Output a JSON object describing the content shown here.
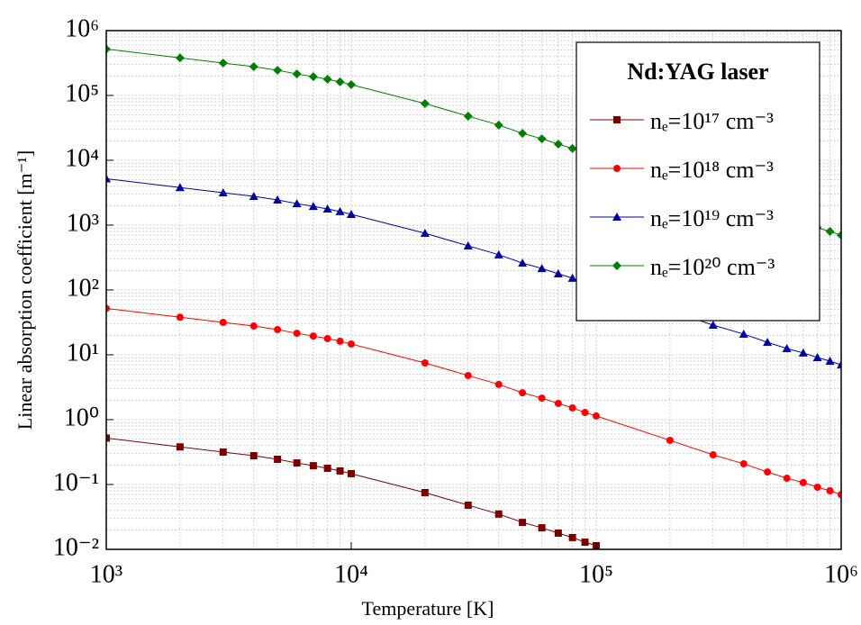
{
  "chart_data": {
    "type": "line",
    "xlabel": "Temperature [K]",
    "ylabel": "Linear absorption coefficient [m⁻¹]",
    "legend_title": "Nd:YAG laser",
    "legend": "upper right",
    "log_x": true,
    "log_y": true,
    "grid": true,
    "minor_grid": true,
    "x": [
      1000,
      2000,
      3000,
      4000,
      5000,
      6000,
      7000,
      8000,
      9000,
      10000,
      20000,
      30000,
      40000,
      50000,
      60000,
      70000,
      80000,
      90000,
      100000,
      200000,
      300000,
      400000,
      500000,
      600000,
      700000,
      800000,
      900000,
      1000000
    ],
    "xlim": [
      1000,
      1000000
    ],
    "xticks": [
      {
        "value": 1000,
        "label": "10³"
      },
      {
        "value": 10000,
        "label": "10⁴"
      },
      {
        "value": 100000,
        "label": "10⁵"
      },
      {
        "value": 1000000,
        "label": "10⁶"
      }
    ],
    "ylim": [
      0.01,
      1000000
    ],
    "yticks": [
      {
        "value": 0.01,
        "label": "10⁻²"
      },
      {
        "value": 0.1,
        "label": "10⁻¹"
      },
      {
        "value": 1,
        "label": "10⁰"
      },
      {
        "value": 10,
        "label": "10¹"
      },
      {
        "value": 100,
        "label": "10²"
      },
      {
        "value": 1000,
        "label": "10³"
      },
      {
        "value": 10000,
        "label": "10⁴"
      },
      {
        "value": 100000,
        "label": "10⁵"
      },
      {
        "value": 1000000,
        "label": "10⁶"
      }
    ],
    "series": [
      {
        "name": "nₑ=10¹⁷ cm⁻³",
        "color": "#7a0000",
        "marker": "square",
        "values": [
          0.52,
          0.38,
          0.316,
          0.278,
          0.245,
          0.215,
          0.195,
          0.178,
          0.162,
          0.147,
          0.075,
          0.048,
          0.035,
          0.026,
          0.0215,
          0.0178,
          0.0152,
          0.0129,
          0.0114,
          null,
          null,
          null,
          null,
          null,
          null,
          null,
          null,
          null
        ]
      },
      {
        "name": "nₑ=10¹⁸ cm⁻³",
        "color": "#ff0000",
        "marker": "circle",
        "values": [
          52,
          38,
          31.6,
          27.8,
          24.5,
          21.5,
          19.5,
          17.8,
          16.2,
          14.7,
          7.5,
          4.8,
          3.5,
          2.6,
          2.15,
          1.78,
          1.52,
          1.29,
          1.14,
          0.48,
          0.287,
          0.209,
          0.156,
          0.125,
          0.107,
          0.091,
          0.08,
          0.07
        ]
      },
      {
        "name": "nₑ=10¹⁹ cm⁻³",
        "color": "#0000a0",
        "marker": "triangle",
        "values": [
          5200,
          3800,
          3160,
          2780,
          2450,
          2150,
          1950,
          1780,
          1620,
          1470,
          750,
          480,
          350,
          260,
          215,
          178,
          152,
          129,
          114,
          48,
          28.7,
          20.9,
          15.6,
          12.5,
          10.7,
          9.1,
          8,
          7
        ]
      },
      {
        "name": "nₑ=10²⁰ cm⁻³",
        "color": "#008000",
        "marker": "diamond",
        "values": [
          520000,
          380000,
          316000,
          278000,
          245000,
          215000,
          195000,
          178000,
          162000,
          147000,
          75000,
          48000,
          35000,
          26000,
          21500,
          17800,
          15200,
          12900,
          11400,
          4800,
          2870,
          2090,
          1560,
          1250,
          1070,
          910,
          800,
          700
        ]
      }
    ]
  }
}
